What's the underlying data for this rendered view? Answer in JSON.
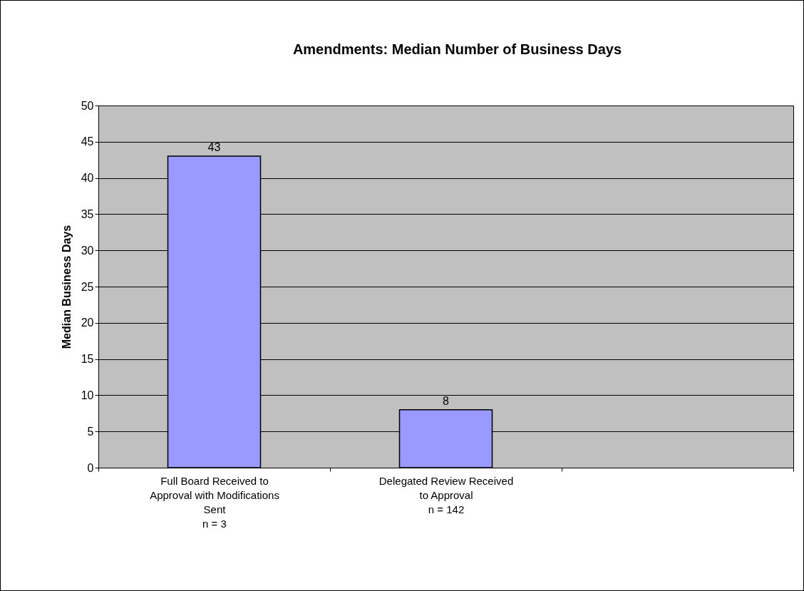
{
  "chart_data": {
    "type": "bar",
    "title": "Amendments:  Median Number of Business Days",
    "ylabel": "Median Business Days",
    "categories": [
      "Full Board Received to Approval with Modifications Sent\nn = 3",
      "Delegated Review Received to Approval\nn = 142",
      null
    ],
    "values": [
      43,
      8,
      null
    ],
    "color": "#9999ff",
    "data_labels": true,
    "ylim": [
      0,
      50
    ],
    "yticks": [
      0,
      5,
      10,
      15,
      20,
      25,
      30,
      35,
      40,
      45,
      50
    ],
    "grid": "y"
  }
}
